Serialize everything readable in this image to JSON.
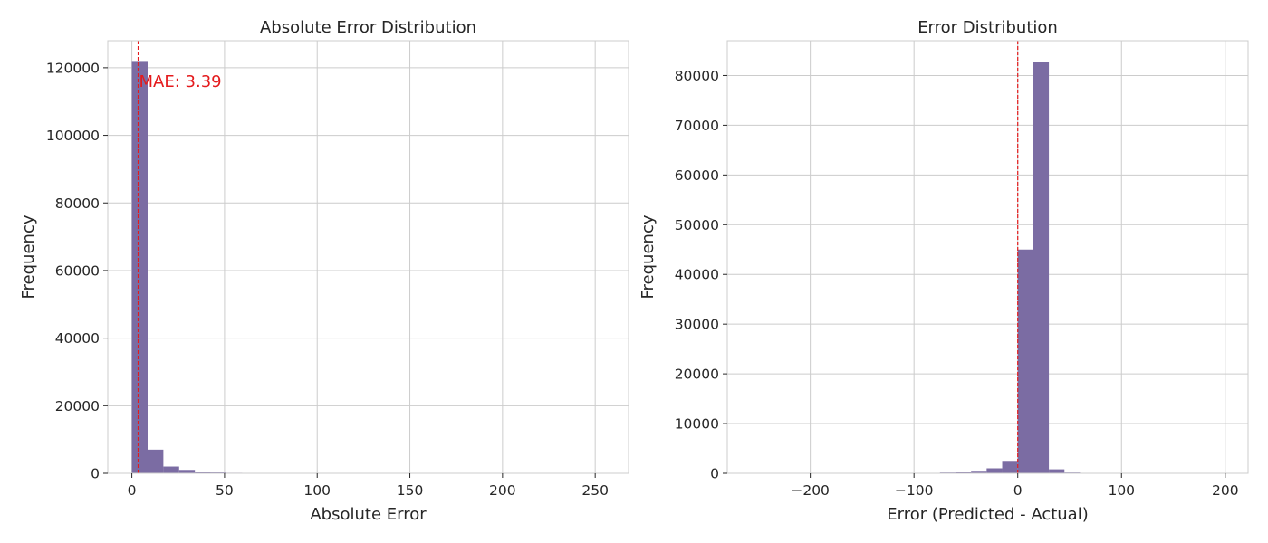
{
  "chart_data": [
    {
      "type": "bar",
      "title": "Absolute Error Distribution",
      "xlabel": "Absolute Error",
      "ylabel": "Frequency",
      "xlim": [
        -13,
        268
      ],
      "ylim": [
        0,
        128000
      ],
      "xticks": [
        0,
        50,
        100,
        150,
        200,
        250
      ],
      "yticks": [
        0,
        20000,
        40000,
        60000,
        80000,
        100000,
        120000
      ],
      "bin_edges": [
        0,
        8.5,
        17,
        25.5,
        34,
        42.5,
        51,
        59.5,
        68,
        76.5,
        85,
        93.5,
        102,
        110.5,
        119,
        127.5,
        136,
        144.5,
        153,
        161.5,
        170,
        178.5,
        187,
        195.5,
        204,
        212.5,
        221,
        229.5,
        238,
        246.5,
        255
      ],
      "counts": [
        122000,
        7000,
        2000,
        1000,
        400,
        250,
        150,
        100,
        80,
        60,
        50,
        40,
        30,
        25,
        20,
        15,
        12,
        10,
        8,
        6,
        5,
        4,
        3,
        3,
        2,
        2,
        1,
        1,
        1,
        1
      ],
      "bar_color": "#7b6ca3",
      "grid": true,
      "vline": {
        "x": 3.39,
        "color": "#e41a1c",
        "style": "dashed"
      },
      "annotation": {
        "text": "MAE: 3.39",
        "x": 3.39,
        "y": 116000,
        "color": "#e41a1c"
      }
    },
    {
      "type": "bar",
      "title": "Error Distribution",
      "xlabel": "Error (Predicted - Actual)",
      "ylabel": "Frequency",
      "xlim": [
        -280,
        222
      ],
      "ylim": [
        0,
        87000
      ],
      "xticks": [
        -200,
        -100,
        0,
        100,
        200
      ],
      "yticks": [
        0,
        10000,
        20000,
        30000,
        40000,
        50000,
        60000,
        70000,
        80000
      ],
      "bin_edges": [
        -255,
        -240,
        -225,
        -210,
        -195,
        -180,
        -165,
        -150,
        -135,
        -120,
        -105,
        -90,
        -75,
        -60,
        -45,
        -30,
        -15,
        0,
        15,
        30,
        45,
        60,
        75,
        90,
        105,
        120,
        135,
        150,
        165,
        180,
        195
      ],
      "counts": [
        5,
        5,
        5,
        5,
        5,
        10,
        10,
        15,
        20,
        30,
        50,
        80,
        150,
        300,
        500,
        1000,
        2500,
        45000,
        82700,
        800,
        150,
        60,
        30,
        20,
        10,
        10,
        5,
        5,
        5,
        5
      ],
      "bar_color": "#7b6ca3",
      "grid": true,
      "vline": {
        "x": 0,
        "color": "#e41a1c",
        "style": "dashed"
      }
    }
  ]
}
